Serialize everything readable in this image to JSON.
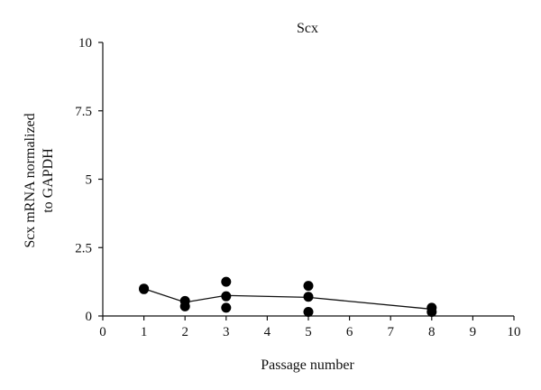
{
  "chart_data": {
    "type": "scatter",
    "title": "Scx",
    "xlabel": "Passage number",
    "ylabel_lines": [
      "Scx mRNA normalized",
      "to GAPDH"
    ],
    "xlim": [
      0,
      10
    ],
    "ylim": [
      0,
      10
    ],
    "x_ticks": [
      "0",
      "1",
      "2",
      "3",
      "4",
      "5",
      "6",
      "7",
      "8",
      "9",
      "10"
    ],
    "y_ticks": [
      "0",
      "2.5",
      "5",
      "7.5",
      "10"
    ],
    "grid": false,
    "points": [
      {
        "x": 1,
        "y": 1.0
      },
      {
        "x": 1,
        "y": 0.98
      },
      {
        "x": 2,
        "y": 0.55
      },
      {
        "x": 2,
        "y": 0.35
      },
      {
        "x": 3,
        "y": 1.25
      },
      {
        "x": 3,
        "y": 0.72
      },
      {
        "x": 3,
        "y": 0.3
      },
      {
        "x": 5,
        "y": 1.1
      },
      {
        "x": 5,
        "y": 0.7
      },
      {
        "x": 5,
        "y": 0.15
      },
      {
        "x": 8,
        "y": 0.3
      },
      {
        "x": 8,
        "y": 0.15
      }
    ],
    "mean_line": {
      "x": [
        1,
        2,
        3,
        5,
        8
      ],
      "y": [
        1.0,
        0.5,
        0.75,
        0.68,
        0.25
      ]
    }
  }
}
